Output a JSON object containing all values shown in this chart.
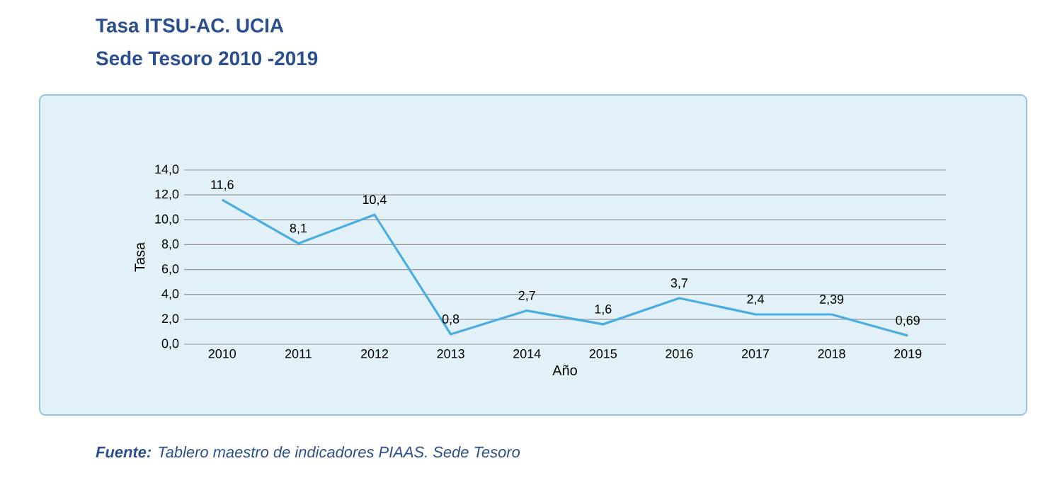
{
  "chart_data": {
    "type": "line",
    "title": "Tasa ITSU-AC. UCIA",
    "subtitle": "Sede Tesoro 2010 -2019",
    "xlabel": "Año",
    "ylabel": "Tasa",
    "categories": [
      "2010",
      "2011",
      "2012",
      "2013",
      "2014",
      "2015",
      "2016",
      "2017",
      "2018",
      "2019"
    ],
    "values": [
      11.6,
      8.1,
      10.4,
      0.8,
      2.7,
      1.6,
      3.7,
      2.4,
      2.39,
      0.69
    ],
    "value_labels": [
      "11,6",
      "8,1",
      "10,4",
      "0,8",
      "2,7",
      "1,6",
      "3,7",
      "2,4",
      "2,39",
      "0,69"
    ],
    "color": "#4aade0",
    "ylim": [
      0,
      14
    ],
    "yticks": [
      {
        "value": 0,
        "label": "0,0"
      },
      {
        "value": 2,
        "label": "2,0"
      },
      {
        "value": 4,
        "label": "4,0"
      },
      {
        "value": 6,
        "label": "6,0"
      },
      {
        "value": 8,
        "label": "8,0"
      },
      {
        "value": 10,
        "label": "10,0"
      },
      {
        "value": 12,
        "label": "12,0"
      },
      {
        "value": 14,
        "label": "14,0"
      }
    ],
    "grid": "y",
    "annotations": [
      "**Fuente:** Tablero maestro de indicadores PIAAS. Sede Tesoro"
    ]
  }
}
